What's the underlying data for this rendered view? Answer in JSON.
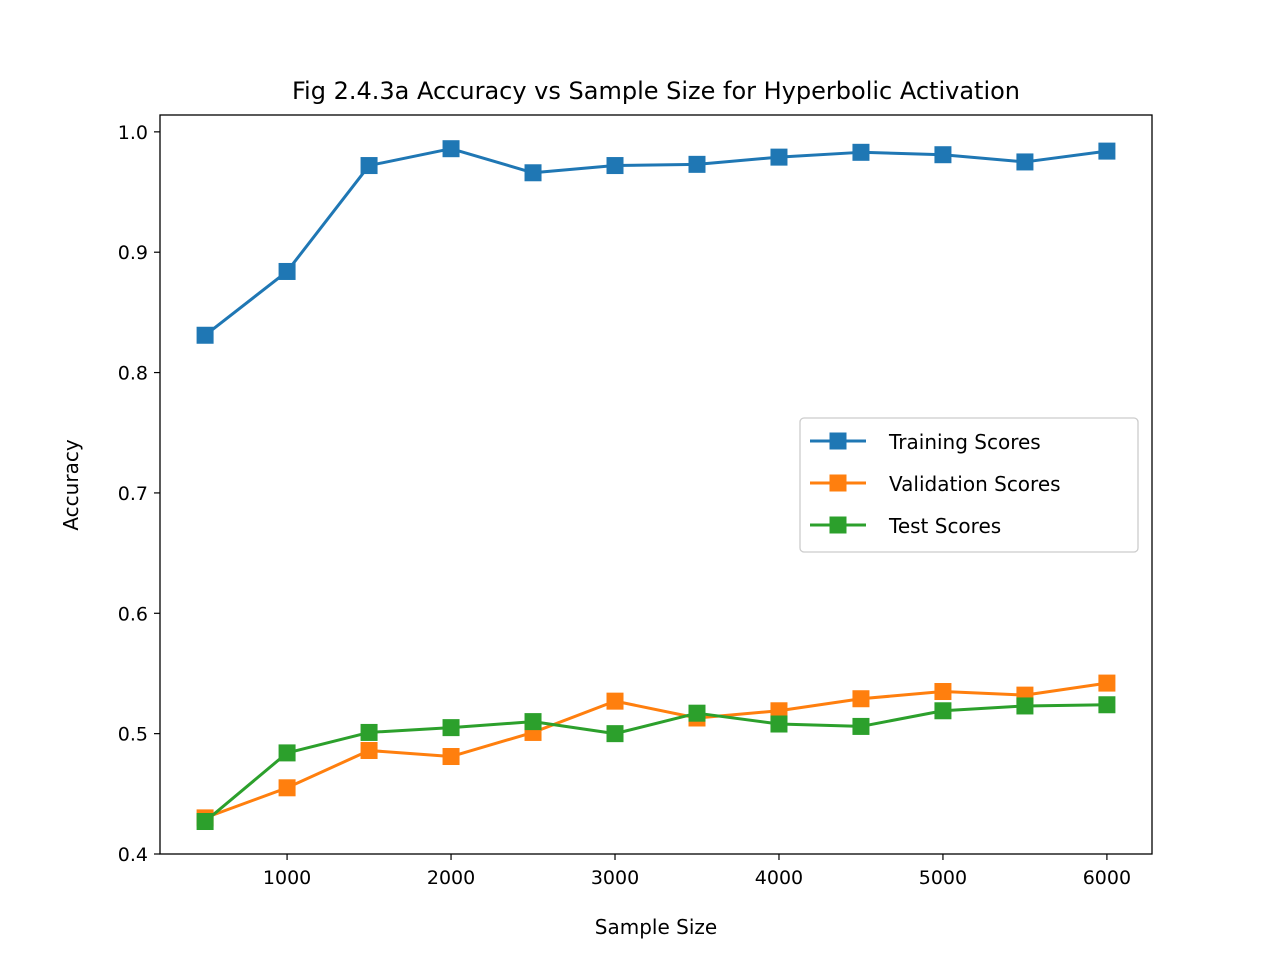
{
  "chart_data": {
    "type": "line",
    "title": "Fig 2.4.3a Accuracy vs Sample Size for Hyperbolic Activation",
    "xlabel": "Sample Size",
    "ylabel": "Accuracy",
    "x": [
      500,
      1000,
      1500,
      2000,
      2500,
      3000,
      3500,
      4000,
      4500,
      5000,
      5500,
      6000
    ],
    "xlim": [
      225,
      6275
    ],
    "ylim": [
      0.4,
      1.014
    ],
    "xticks": [
      1000,
      2000,
      3000,
      4000,
      5000,
      6000
    ],
    "yticks": [
      0.4,
      0.5,
      0.6,
      0.7,
      0.8,
      0.9,
      1.0
    ],
    "xtick_labels": [
      "1000",
      "2000",
      "3000",
      "4000",
      "5000",
      "6000"
    ],
    "ytick_labels": [
      "0.4",
      "0.5",
      "0.6",
      "0.7",
      "0.8",
      "0.9",
      "1.0"
    ],
    "grid": false,
    "legend_position": "center-right",
    "marker": "square",
    "series": [
      {
        "name": "Training Scores",
        "color": "#1f77b4",
        "values": [
          0.831,
          0.884,
          0.972,
          0.986,
          0.966,
          0.972,
          0.973,
          0.979,
          0.983,
          0.981,
          0.975,
          0.984
        ]
      },
      {
        "name": "Validation Scores",
        "color": "#ff7f0e",
        "values": [
          0.43,
          0.455,
          0.486,
          0.481,
          0.501,
          0.527,
          0.513,
          0.519,
          0.529,
          0.535,
          0.532,
          0.542
        ]
      },
      {
        "name": "Test Scores",
        "color": "#2ca02c",
        "values": [
          0.427,
          0.484,
          0.501,
          0.505,
          0.51,
          0.5,
          0.517,
          0.508,
          0.506,
          0.519,
          0.523,
          0.524
        ]
      }
    ]
  }
}
